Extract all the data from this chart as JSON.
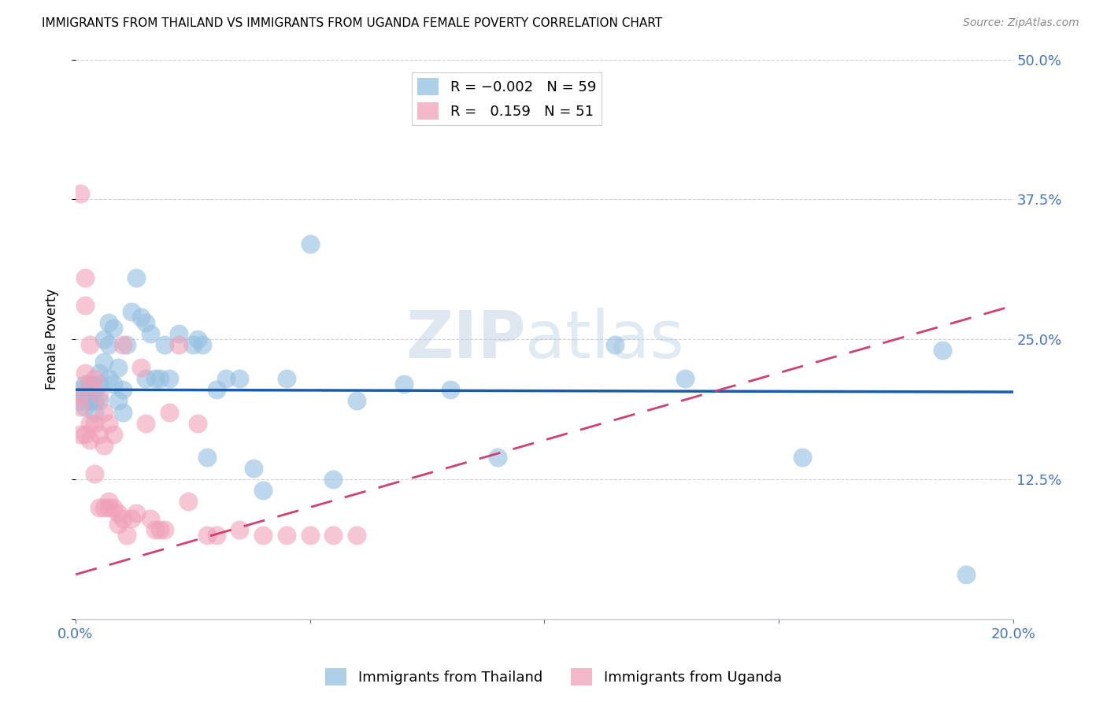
{
  "title": "IMMIGRANTS FROM THAILAND VS IMMIGRANTS FROM UGANDA FEMALE POVERTY CORRELATION CHART",
  "source": "Source: ZipAtlas.com",
  "ylabel": "Female Poverty",
  "xlim": [
    0.0,
    0.2
  ],
  "ylim": [
    0.0,
    0.5
  ],
  "yticks": [
    0.0,
    0.125,
    0.25,
    0.375,
    0.5
  ],
  "ytick_labels": [
    "",
    "12.5%",
    "25.0%",
    "37.5%",
    "50.0%"
  ],
  "xticks": [
    0.0,
    0.05,
    0.1,
    0.15,
    0.2
  ],
  "xtick_labels": [
    "0.0%",
    "",
    "",
    "",
    "20.0%"
  ],
  "color_thailand": "#92BFE0",
  "color_uganda": "#F0A0B8",
  "trendline_thailand_color": "#1A5CA8",
  "trendline_uganda_color": "#D04070",
  "axis_label_color": "#4472C4",
  "thailand_trendline_y0": 0.205,
  "thailand_trendline_y1": 0.203,
  "uganda_trendline_y0": 0.04,
  "uganda_trendline_y1": 0.28,
  "thailand_x": [
    0.001,
    0.001,
    0.002,
    0.002,
    0.002,
    0.003,
    0.003,
    0.003,
    0.004,
    0.004,
    0.004,
    0.005,
    0.005,
    0.005,
    0.006,
    0.006,
    0.007,
    0.007,
    0.007,
    0.008,
    0.008,
    0.009,
    0.009,
    0.01,
    0.01,
    0.011,
    0.012,
    0.013,
    0.014,
    0.015,
    0.015,
    0.016,
    0.017,
    0.018,
    0.019,
    0.02,
    0.022,
    0.025,
    0.026,
    0.027,
    0.028,
    0.03,
    0.032,
    0.035,
    0.038,
    0.04,
    0.045,
    0.05,
    0.055,
    0.06,
    0.07,
    0.08,
    0.09,
    0.1,
    0.115,
    0.13,
    0.155,
    0.185,
    0.19
  ],
  "thailand_y": [
    0.205,
    0.195,
    0.21,
    0.2,
    0.19,
    0.21,
    0.2,
    0.195,
    0.205,
    0.195,
    0.185,
    0.22,
    0.21,
    0.195,
    0.25,
    0.23,
    0.265,
    0.245,
    0.215,
    0.26,
    0.21,
    0.225,
    0.195,
    0.205,
    0.185,
    0.245,
    0.275,
    0.305,
    0.27,
    0.265,
    0.215,
    0.255,
    0.215,
    0.215,
    0.245,
    0.215,
    0.255,
    0.245,
    0.25,
    0.245,
    0.145,
    0.205,
    0.215,
    0.215,
    0.135,
    0.115,
    0.215,
    0.335,
    0.125,
    0.195,
    0.21,
    0.205,
    0.145,
    0.475,
    0.245,
    0.215,
    0.145,
    0.24,
    0.04
  ],
  "uganda_x": [
    0.001,
    0.001,
    0.001,
    0.001,
    0.002,
    0.002,
    0.002,
    0.002,
    0.003,
    0.003,
    0.003,
    0.003,
    0.004,
    0.004,
    0.004,
    0.005,
    0.005,
    0.005,
    0.006,
    0.006,
    0.006,
    0.007,
    0.007,
    0.007,
    0.008,
    0.008,
    0.009,
    0.009,
    0.01,
    0.01,
    0.011,
    0.012,
    0.013,
    0.014,
    0.015,
    0.016,
    0.017,
    0.018,
    0.019,
    0.02,
    0.022,
    0.024,
    0.026,
    0.028,
    0.03,
    0.035,
    0.04,
    0.045,
    0.05,
    0.055,
    0.06
  ],
  "uganda_y": [
    0.38,
    0.2,
    0.19,
    0.165,
    0.305,
    0.28,
    0.22,
    0.165,
    0.245,
    0.21,
    0.175,
    0.16,
    0.215,
    0.175,
    0.13,
    0.2,
    0.165,
    0.1,
    0.185,
    0.155,
    0.1,
    0.175,
    0.105,
    0.1,
    0.165,
    0.1,
    0.095,
    0.085,
    0.245,
    0.09,
    0.075,
    0.09,
    0.095,
    0.225,
    0.175,
    0.09,
    0.08,
    0.08,
    0.08,
    0.185,
    0.245,
    0.105,
    0.175,
    0.075,
    0.075,
    0.08,
    0.075,
    0.075,
    0.075,
    0.075,
    0.075
  ]
}
